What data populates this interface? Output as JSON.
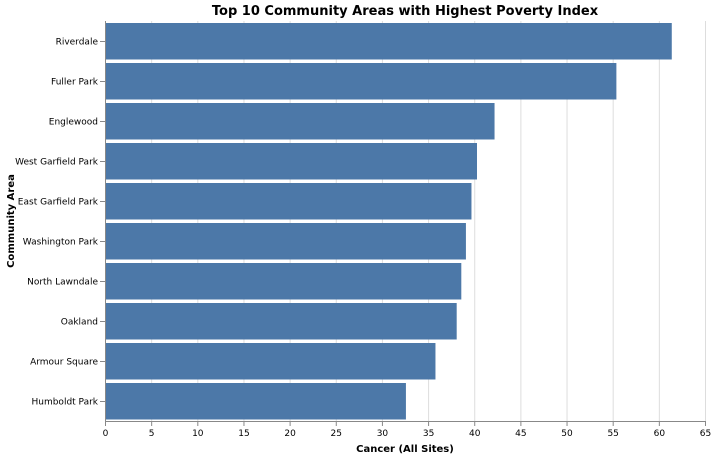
{
  "chart_data": {
    "type": "bar",
    "orientation": "horizontal",
    "title": "Top 10 Community Areas with Highest Poverty Index",
    "xlabel": "Cancer (All Sites)",
    "ylabel": "Community Area",
    "categories": [
      "Riverdale",
      "Fuller Park",
      "Englewood",
      "West Garfield Park",
      "East Garfield Park",
      "Washington Park",
      "North Lawndale",
      "Oakland",
      "Armour Square",
      "Humboldt Park"
    ],
    "values": [
      61.4,
      55.4,
      42.2,
      40.3,
      39.7,
      39.1,
      38.6,
      38.1,
      35.8,
      32.6
    ],
    "xlim": [
      0,
      65
    ],
    "xticks": [
      0,
      5,
      10,
      15,
      20,
      25,
      30,
      35,
      40,
      45,
      50,
      55,
      60,
      65
    ],
    "grid": true,
    "bar_color": "#4c78a8",
    "grid_color": "#dddddd",
    "axis_color": "#888888"
  }
}
